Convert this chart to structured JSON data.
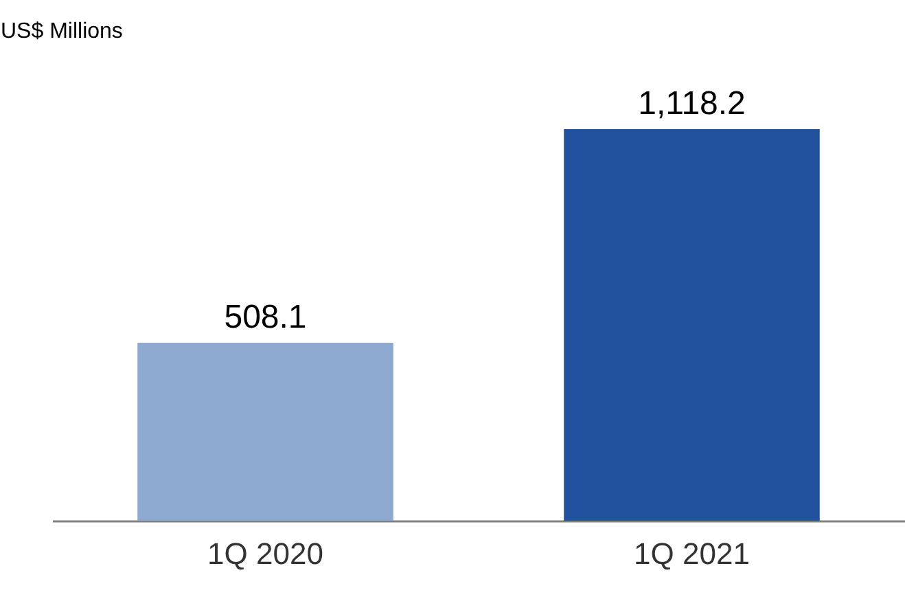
{
  "chart_data": {
    "type": "bar",
    "ylabel": "US$ Millions",
    "categories": [
      "1Q 2020",
      "1Q 2021"
    ],
    "values": [
      508.1,
      1118.2
    ],
    "value_labels": [
      "508.1",
      "1,118.2"
    ],
    "colors": [
      "#8eaad0",
      "#22529e"
    ],
    "grid": false
  }
}
